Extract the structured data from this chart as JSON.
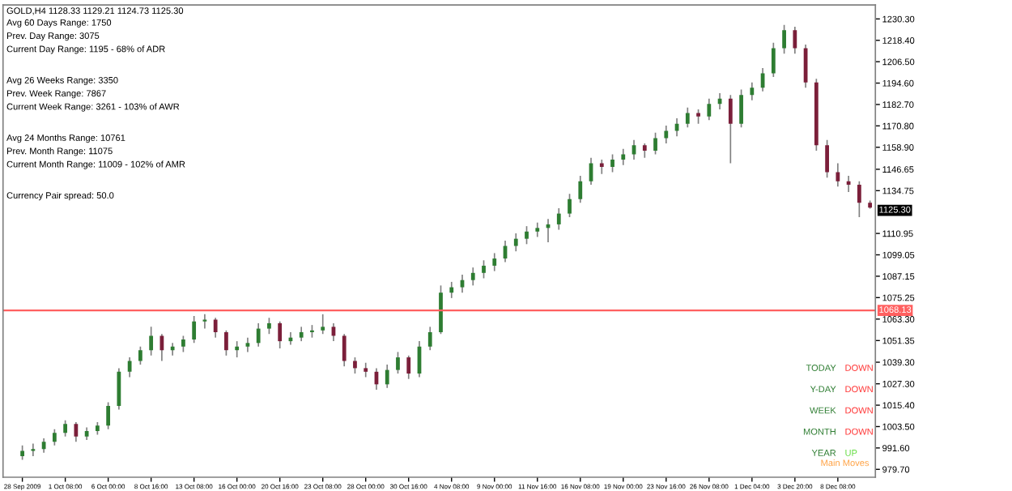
{
  "chart_data": {
    "type": "candlestick",
    "title": "GOLD,H4 1128.33 1129.21 1124.73 1125.30",
    "categories": [
      "28 Sep 2009",
      null,
      null,
      null,
      "1 Oct 08:00",
      null,
      null,
      null,
      "6 Oct 00:00",
      null,
      null,
      null,
      "8 Oct 16:00",
      null,
      null,
      null,
      "13 Oct 08:00",
      null,
      null,
      null,
      "16 Oct 00:00",
      null,
      null,
      null,
      "20 Oct 16:00",
      null,
      null,
      null,
      "23 Oct 08:00",
      null,
      null,
      null,
      "28 Oct 00:00",
      null,
      null,
      null,
      "30 Oct 16:00",
      null,
      null,
      null,
      "4 Nov 08:00",
      null,
      null,
      null,
      "9 Nov 00:00",
      null,
      null,
      null,
      "11 Nov 16:00",
      null,
      null,
      null,
      "16 Nov 08:00",
      null,
      null,
      null,
      "19 Nov 00:00",
      null,
      null,
      null,
      "23 Nov 16:00",
      null,
      null,
      null,
      "26 Nov 08:00",
      null,
      null,
      null,
      "1 Dec 04:00",
      null,
      null,
      null,
      "3 Dec 20:00",
      null,
      null,
      null,
      "8 Dec 08:00",
      null,
      null,
      null
    ],
    "ohlc": [
      [
        987,
        993,
        985,
        990
      ],
      [
        990,
        994,
        987,
        991
      ],
      [
        991,
        997,
        989,
        995
      ],
      [
        995,
        1002,
        993,
        1000
      ],
      [
        1000,
        1007,
        998,
        1005
      ],
      [
        1005,
        1006,
        995,
        998
      ],
      [
        998,
        1003,
        996,
        1001
      ],
      [
        1001,
        1006,
        999,
        1004
      ],
      [
        1004,
        1017,
        1002,
        1015
      ],
      [
        1015,
        1036,
        1013,
        1034
      ],
      [
        1034,
        1042,
        1031,
        1040
      ],
      [
        1040,
        1048,
        1038,
        1046
      ],
      [
        1046,
        1059,
        1043,
        1054
      ],
      [
        1054,
        1055,
        1040,
        1046
      ],
      [
        1046,
        1050,
        1043,
        1048
      ],
      [
        1048,
        1054,
        1045,
        1052
      ],
      [
        1052,
        1065,
        1050,
        1062
      ],
      [
        1062,
        1066,
        1058,
        1063
      ],
      [
        1063,
        1064,
        1053,
        1056
      ],
      [
        1056,
        1057,
        1043,
        1046
      ],
      [
        1046,
        1051,
        1042,
        1048
      ],
      [
        1048,
        1053,
        1045,
        1050
      ],
      [
        1050,
        1061,
        1048,
        1058
      ],
      [
        1058,
        1064,
        1055,
        1061
      ],
      [
        1061,
        1062,
        1047,
        1051
      ],
      [
        1051,
        1056,
        1049,
        1053
      ],
      [
        1053,
        1059,
        1051,
        1056
      ],
      [
        1056,
        1060,
        1053,
        1057
      ],
      [
        1057,
        1066,
        1055,
        1059
      ],
      [
        1059,
        1061,
        1051,
        1054
      ],
      [
        1054,
        1055,
        1037,
        1040
      ],
      [
        1040,
        1042,
        1033,
        1036
      ],
      [
        1036,
        1039,
        1031,
        1034
      ],
      [
        1034,
        1036,
        1024,
        1027
      ],
      [
        1027,
        1038,
        1025,
        1035
      ],
      [
        1035,
        1045,
        1033,
        1042
      ],
      [
        1042,
        1043,
        1030,
        1033
      ],
      [
        1033,
        1051,
        1031,
        1048
      ],
      [
        1048,
        1059,
        1046,
        1056
      ],
      [
        1056,
        1082,
        1055,
        1078
      ],
      [
        1078,
        1084,
        1075,
        1081
      ],
      [
        1081,
        1088,
        1078,
        1085
      ],
      [
        1085,
        1092,
        1082,
        1089
      ],
      [
        1089,
        1096,
        1086,
        1093
      ],
      [
        1093,
        1100,
        1090,
        1097
      ],
      [
        1097,
        1107,
        1095,
        1104
      ],
      [
        1104,
        1111,
        1101,
        1108
      ],
      [
        1108,
        1115,
        1105,
        1112
      ],
      [
        1112,
        1117,
        1109,
        1114
      ],
      [
        1114,
        1119,
        1106,
        1116
      ],
      [
        1116,
        1125,
        1113,
        1122
      ],
      [
        1122,
        1133,
        1120,
        1130
      ],
      [
        1130,
        1143,
        1128,
        1140
      ],
      [
        1140,
        1153,
        1138,
        1150
      ],
      [
        1150,
        1152,
        1144,
        1148
      ],
      [
        1148,
        1155,
        1145,
        1152
      ],
      [
        1152,
        1158,
        1149,
        1155
      ],
      [
        1155,
        1163,
        1152,
        1160
      ],
      [
        1160,
        1161,
        1153,
        1157
      ],
      [
        1157,
        1167,
        1155,
        1164
      ],
      [
        1164,
        1171,
        1161,
        1168
      ],
      [
        1168,
        1175,
        1165,
        1172
      ],
      [
        1172,
        1181,
        1170,
        1178
      ],
      [
        1178,
        1180,
        1172,
        1176
      ],
      [
        1176,
        1186,
        1174,
        1183
      ],
      [
        1183,
        1189,
        1180,
        1186
      ],
      [
        1186,
        1188,
        1150,
        1172
      ],
      [
        1172,
        1191,
        1170,
        1188
      ],
      [
        1188,
        1195,
        1185,
        1192
      ],
      [
        1192,
        1203,
        1190,
        1200
      ],
      [
        1200,
        1217,
        1198,
        1214
      ],
      [
        1214,
        1227,
        1211,
        1224
      ],
      [
        1224,
        1226,
        1211,
        1214
      ],
      [
        1214,
        1216,
        1192,
        1195
      ],
      [
        1195,
        1197,
        1157,
        1160
      ],
      [
        1160,
        1163,
        1142,
        1145
      ],
      [
        1145,
        1150,
        1137,
        1140
      ],
      [
        1140,
        1143,
        1134,
        1138
      ],
      [
        1138,
        1140,
        1120,
        1128
      ],
      [
        1128,
        1129.21,
        1124.73,
        1125.3
      ]
    ],
    "colors": [
      "#2e7d32",
      "#2e7d32",
      "#2e7d32",
      "#2e7d32",
      "#2e7d32",
      "#7b1f3a",
      "#2e7d32",
      "#2e7d32",
      "#2e7d32",
      "#2e7d32",
      "#2e7d32",
      "#2e7d32",
      "#2e7d32",
      "#7b1f3a",
      "#2e7d32",
      "#2e7d32",
      "#2e7d32",
      "#2e7d32",
      "#7b1f3a",
      "#7b1f3a",
      "#2e7d32",
      "#2e7d32",
      "#2e7d32",
      "#2e7d32",
      "#7b1f3a",
      "#2e7d32",
      "#2e7d32",
      "#2e7d32",
      "#2e7d32",
      "#7b1f3a",
      "#7b1f3a",
      "#7b1f3a",
      "#7b1f3a",
      "#7b1f3a",
      "#2e7d32",
      "#2e7d32",
      "#7b1f3a",
      "#2e7d32",
      "#2e7d32",
      "#2e7d32",
      "#2e7d32",
      "#2e7d32",
      "#2e7d32",
      "#2e7d32",
      "#2e7d32",
      "#2e7d32",
      "#2e7d32",
      "#2e7d32",
      "#2e7d32",
      "#2e7d32",
      "#2e7d32",
      "#2e7d32",
      "#2e7d32",
      "#2e7d32",
      "#7b1f3a",
      "#2e7d32",
      "#2e7d32",
      "#2e7d32",
      "#7b1f3a",
      "#2e7d32",
      "#2e7d32",
      "#2e7d32",
      "#2e7d32",
      "#7b1f3a",
      "#2e7d32",
      "#2e7d32",
      "#7b1f3a",
      "#2e7d32",
      "#2e7d32",
      "#2e7d32",
      "#2e7d32",
      "#2e7d32",
      "#7b1f3a",
      "#7b1f3a",
      "#7b1f3a",
      "#7b1f3a",
      "#7b1f3a",
      "#7b1f3a",
      "#7b1f3a",
      "#7b1f3a"
    ],
    "ylim": [
      975.3,
      1238.1
    ],
    "yticks": [
      {
        "value": 979.7,
        "label": "979.70"
      },
      {
        "value": 991.6,
        "label": "991.60"
      },
      {
        "value": 1003.5,
        "label": "1003.50"
      },
      {
        "value": 1015.4,
        "label": "1015.40"
      },
      {
        "value": 1027.3,
        "label": "1027.30"
      },
      {
        "value": 1039.3,
        "label": "1039.30"
      },
      1051.35,
      {
        "value": 1063.3,
        "label": "1063.30"
      },
      1075.25,
      1087.15,
      1099.05,
      1110.95,
      1134.75,
      1146.65,
      {
        "value": 1158.9,
        "label": "1158.90"
      },
      {
        "value": 1170.8,
        "label": "1170.80"
      },
      {
        "value": 1182.7,
        "label": "1182.70"
      },
      {
        "value": 1194.6,
        "label": "1194.60"
      },
      {
        "value": 1206.5,
        "label": "1206.50"
      },
      {
        "value": 1218.4,
        "label": "1218.40"
      },
      {
        "value": 1230.3,
        "label": "1230.30"
      }
    ],
    "ref_lines": [
      {
        "axis": "y",
        "value": 1068.13,
        "label": "1068.13",
        "color": "#ff6060"
      }
    ],
    "grid": false,
    "annotations": [
      "Avg 60 Days Range: 1750",
      "Prev. Day Range: 3075",
      "Current Day Range: 1195 - 68% of ADR",
      "Avg 26 Weeks Range: 3350",
      "Prev. Week Range: 7867",
      "Current Week Range: 3261 - 103% of AWR",
      "Avg 24 Months Range: 10761",
      "Prev. Month Range: 11075",
      "Current Month Range: 11009 - 102% of AMR",
      "Currency Pair spread: 50.0",
      "TODAY",
      "DOWN",
      "Y-DAY",
      "DOWN",
      "WEEK",
      "DOWN",
      "MONTH",
      "DOWN",
      "YEAR",
      "UP",
      "Main Moves",
      "1125.30"
    ]
  }
}
